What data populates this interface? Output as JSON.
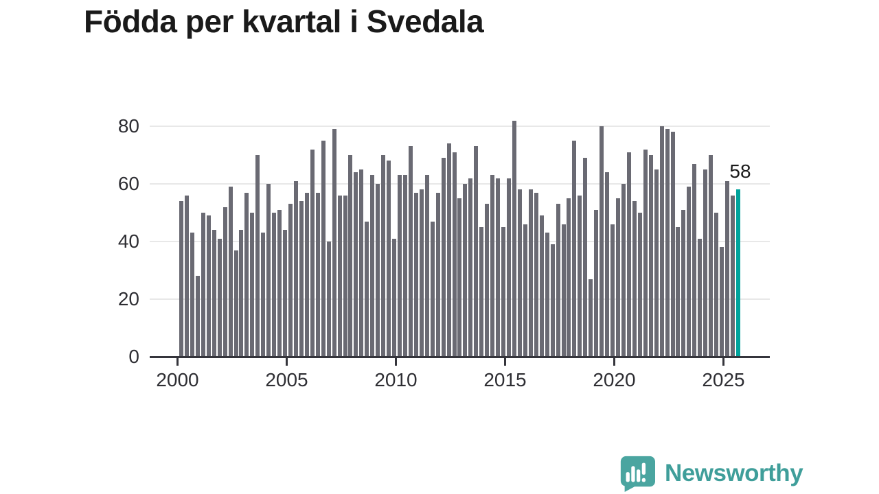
{
  "title": "Födda per kvartal i Svedala",
  "highlight_label": "58",
  "brand": {
    "name": "Newsworthy"
  },
  "colors": {
    "bar": "#6a6a73",
    "highlight_bar": "#00a39c",
    "axis": "#35353c",
    "grid": "#e8e8e8",
    "title_text": "#1a1a1a",
    "brand_teal": "#3f9e9a"
  },
  "chart_data": {
    "type": "bar",
    "title": "Födda per kvartal i Svedala",
    "xlabel": "",
    "ylabel": "",
    "start_quarter": "2000-Q1",
    "end_quarter": "2025-Q3",
    "x_tick_years": [
      2000,
      2005,
      2010,
      2015,
      2020,
      2025
    ],
    "x_tick_labels": [
      "2000",
      "2005",
      "2010",
      "2015",
      "2020",
      "2025"
    ],
    "y_ticks": [
      0,
      20,
      40,
      60,
      80
    ],
    "ylim": [
      0,
      86
    ],
    "grid": "horizontal",
    "legend": "none",
    "highlight_last": true,
    "highlight_value": 58,
    "values": [
      54,
      56,
      43,
      28,
      50,
      49,
      44,
      41,
      52,
      59,
      37,
      44,
      57,
      50,
      70,
      43,
      60,
      50,
      51,
      44,
      53,
      61,
      54,
      57,
      72,
      57,
      75,
      40,
      79,
      56,
      56,
      70,
      64,
      65,
      47,
      63,
      60,
      70,
      68,
      41,
      63,
      63,
      73,
      57,
      58,
      63,
      47,
      57,
      69,
      74,
      71,
      55,
      60,
      62,
      73,
      45,
      53,
      63,
      62,
      45,
      62,
      82,
      58,
      46,
      58,
      57,
      49,
      43,
      39,
      53,
      46,
      55,
      75,
      56,
      69,
      27,
      51,
      80,
      64,
      46,
      55,
      60,
      71,
      54,
      50,
      72,
      70,
      65,
      80,
      79,
      78,
      45,
      51,
      59,
      67,
      41,
      65,
      70,
      50,
      38,
      61,
      56,
      58
    ]
  }
}
